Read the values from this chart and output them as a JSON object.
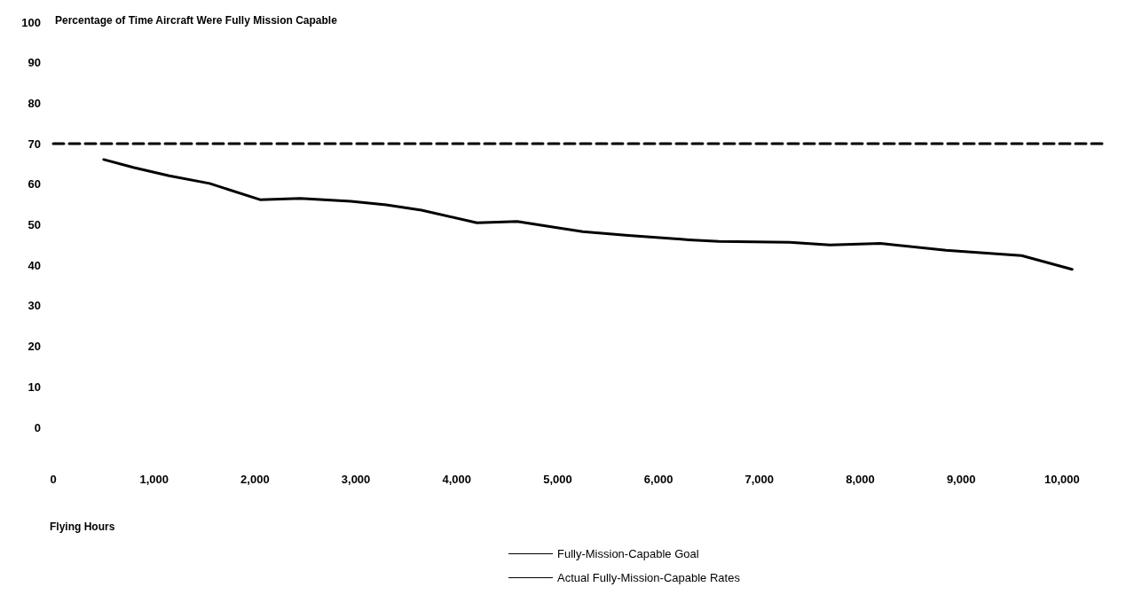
{
  "chart_data": {
    "type": "line",
    "ylabel": "Percentage of Time Aircraft Were Fully Mission Capable",
    "xlabel": "Flying Hours",
    "xlim": [
      0,
      10450
    ],
    "xticks": [
      0,
      {
        "value": 1000,
        "label": "1,000"
      },
      {
        "value": 2000,
        "label": "2,000"
      },
      {
        "value": 3000,
        "label": "3,000"
      },
      {
        "value": 4000,
        "label": "4,000"
      },
      {
        "value": 5000,
        "label": "5,000"
      },
      {
        "value": 6000,
        "label": "6,000"
      },
      {
        "value": 7000,
        "label": "7,000"
      },
      {
        "value": 8000,
        "label": "8,000"
      },
      {
        "value": 9000,
        "label": "9,000"
      },
      {
        "value": 10000,
        "label": "10,000"
      }
    ],
    "ylim": [
      0,
      100
    ],
    "yticks": [
      0,
      10,
      20,
      30,
      40,
      50,
      60,
      70,
      80,
      90,
      100
    ],
    "grid": false,
    "legend": "bottom",
    "marker": "none",
    "series": [
      {
        "name": "Fully-Mission-Capable Goal",
        "color": "#000000",
        "line_style": "dashed",
        "x": [
          0,
          10450
        ],
        "values": [
          70,
          70
        ]
      },
      {
        "name": "Actual Fully-Mission-Capable Rates",
        "color": "#000000",
        "line_style": "solid",
        "x": [
          500,
          800,
          1150,
          1550,
          2050,
          2450,
          2950,
          3300,
          3650,
          4200,
          4600,
          5250,
          5700,
          6300,
          6600,
          7300,
          7700,
          8200,
          8850,
          9600,
          10100
        ],
        "values": [
          66.1,
          64.1,
          62.1,
          60.2,
          56.2,
          56.5,
          55.8,
          54.9,
          53.6,
          50.5,
          50.8,
          48.3,
          47.4,
          46.3,
          45.9,
          45.7,
          45.0,
          45.4,
          43.7,
          42.4,
          39.0
        ]
      }
    ]
  }
}
